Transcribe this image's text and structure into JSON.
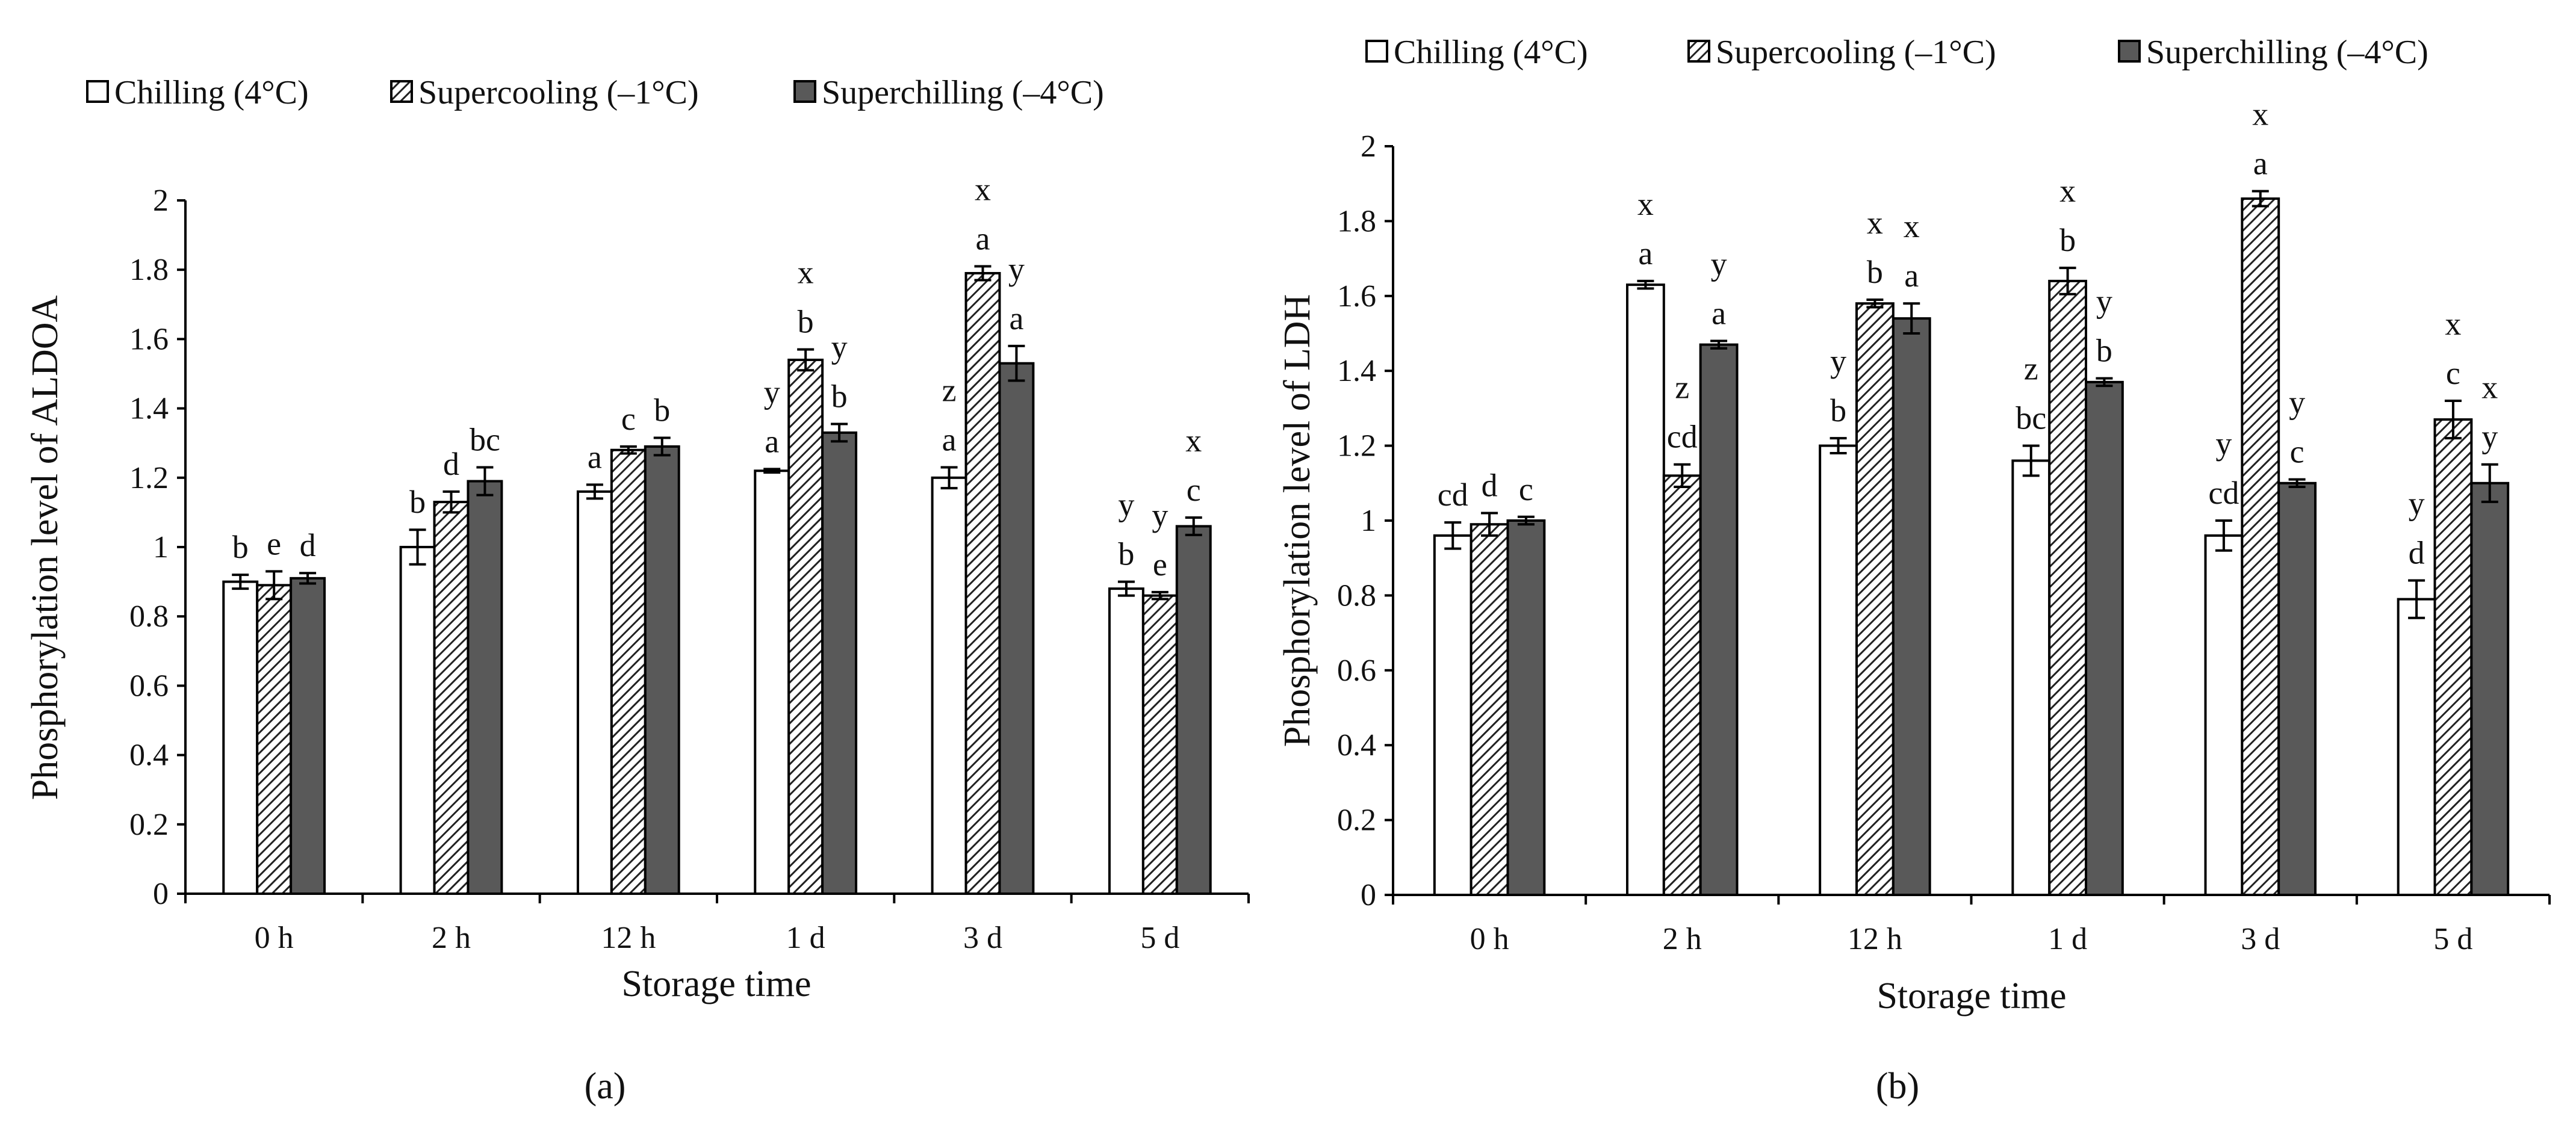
{
  "legend": [
    "Chilling (4°C)",
    "Supercooling (–1°C)",
    "Superchilling  (–4°C)"
  ],
  "colors": {
    "chilling": "#ffffff",
    "supercooling_hatch": "#222222",
    "superchilling": "#595959",
    "axis": "#000000"
  },
  "chart_data": [
    {
      "type": "bar",
      "caption_letter": "a",
      "caption": "(a)",
      "xlabel": "Storage time",
      "ylabel": "Phosphorylation level of ALDOA",
      "ylim": [
        0,
        2
      ],
      "yticks": [
        "0",
        "0.2",
        "0.4",
        "0.6",
        "0.8",
        "1",
        "1.2",
        "1.4",
        "1.6",
        "1.8",
        "2"
      ],
      "categories": [
        "0 h",
        "2 h",
        "12 h",
        "1 d",
        "3 d",
        "5 d"
      ],
      "series": [
        {
          "name": "Chilling (4°C)",
          "values": [
            0.9,
            1.0,
            1.16,
            1.22,
            1.2,
            0.88
          ],
          "errors": [
            0.02,
            0.05,
            0.02,
            0.005,
            0.03,
            0.02
          ],
          "labels": [
            [
              "b"
            ],
            [
              "b"
            ],
            [
              "a"
            ],
            [
              "y",
              "a"
            ],
            [
              "z",
              "a"
            ],
            [
              "y",
              "b"
            ]
          ]
        },
        {
          "name": "Supercooling (–1°C)",
          "values": [
            0.89,
            1.13,
            1.28,
            1.54,
            1.79,
            0.86
          ],
          "errors": [
            0.04,
            0.03,
            0.01,
            0.03,
            0.02,
            0.01
          ],
          "labels": [
            [
              "e"
            ],
            [
              "d"
            ],
            [
              "c"
            ],
            [
              "x",
              "b"
            ],
            [
              "x",
              "a"
            ],
            [
              "y",
              "e"
            ]
          ]
        },
        {
          "name": "Superchilling (–4°C)",
          "values": [
            0.91,
            1.19,
            1.29,
            1.33,
            1.53,
            1.06
          ],
          "errors": [
            0.015,
            0.04,
            0.025,
            0.025,
            0.05,
            0.025
          ],
          "labels": [
            [
              "d"
            ],
            [
              "bc"
            ],
            [
              "b"
            ],
            [
              "y",
              "b"
            ],
            [
              "y",
              "a"
            ],
            [
              "x",
              "c"
            ]
          ]
        }
      ]
    },
    {
      "type": "bar",
      "caption_letter": "b",
      "caption": "(b)",
      "xlabel": "Storage time",
      "ylabel": "Phosphorylation  level of LDH",
      "ylim": [
        0,
        2
      ],
      "yticks": [
        "0",
        "0.2",
        "0.4",
        "0.6",
        "0.8",
        "1",
        "1.2",
        "1.4",
        "1.6",
        "1.8",
        "2"
      ],
      "categories": [
        "0 h",
        "2 h",
        "12 h",
        "1 d",
        "3 d",
        "5 d"
      ],
      "series": [
        {
          "name": "Chilling (4°C)",
          "values": [
            0.96,
            1.63,
            1.2,
            1.16,
            0.96,
            0.79
          ],
          "errors": [
            0.035,
            0.01,
            0.02,
            0.04,
            0.04,
            0.05
          ],
          "labels": [
            [
              "cd"
            ],
            [
              "x",
              "a"
            ],
            [
              "y",
              "b"
            ],
            [
              "z",
              "bc"
            ],
            [
              "y",
              "cd"
            ],
            [
              "y",
              "d"
            ]
          ]
        },
        {
          "name": "Supercooling (–1°C)",
          "values": [
            0.99,
            1.12,
            1.58,
            1.64,
            1.86,
            1.27
          ],
          "errors": [
            0.03,
            0.03,
            0.01,
            0.035,
            0.02,
            0.05
          ],
          "labels": [
            [
              "d"
            ],
            [
              "z",
              "cd"
            ],
            [
              "x",
              "b"
            ],
            [
              "x",
              "b"
            ],
            [
              "x",
              "a"
            ],
            [
              "x",
              "c"
            ]
          ]
        },
        {
          "name": "Superchilling (–4°C)",
          "values": [
            1.0,
            1.47,
            1.54,
            1.37,
            1.1,
            1.1
          ],
          "errors": [
            0.01,
            0.01,
            0.04,
            0.01,
            0.01,
            0.05
          ],
          "labels": [
            [
              "c"
            ],
            [
              "y",
              "a"
            ],
            [
              "x",
              "a"
            ],
            [
              "y",
              "b"
            ],
            [
              "y",
              "c"
            ],
            [
              "x",
              "y"
            ]
          ]
        }
      ]
    }
  ]
}
